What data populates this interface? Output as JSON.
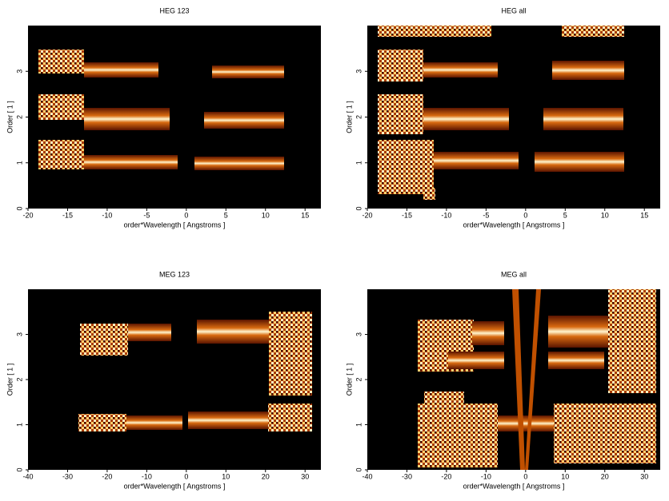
{
  "chart_data": [
    {
      "type": "heatmap",
      "title": "HEG 123",
      "xlabel": "order*Wavelength [ Angstroms ]",
      "ylabel": "Order [ 1 ]",
      "xlim": [
        -20,
        17
      ],
      "xticks": [
        -20,
        -15,
        -10,
        -5,
        0,
        5,
        10,
        15
      ],
      "ylim": [
        0,
        4
      ],
      "yticks": [
        0,
        1,
        2,
        3
      ]
    },
    {
      "type": "heatmap",
      "title": "HEG all",
      "xlabel": "order*Wavelength [ Angstroms ]",
      "ylabel": "Order [ 1 ]",
      "xlim": [
        -20,
        17
      ],
      "xticks": [
        -20,
        -15,
        -10,
        -5,
        0,
        5,
        10,
        15
      ],
      "ylim": [
        0,
        4
      ],
      "yticks": [
        0,
        1,
        2,
        3
      ]
    },
    {
      "type": "heatmap",
      "title": "MEG 123",
      "xlabel": "order*Wavelength [ Angstroms ]",
      "ylabel": "Order [ 1 ]",
      "xlim": [
        -40,
        34
      ],
      "xticks": [
        -40,
        -30,
        -20,
        -10,
        0,
        10,
        20,
        30
      ],
      "ylim": [
        0,
        4
      ],
      "yticks": [
        0,
        1,
        2,
        3
      ]
    },
    {
      "type": "heatmap",
      "title": "MEG all",
      "xlabel": "order*Wavelength [ Angstroms ]",
      "ylabel": "Order [ 1 ]",
      "xlim": [
        -40,
        34
      ],
      "xticks": [
        -40,
        -30,
        -20,
        -10,
        0,
        10,
        20,
        30
      ],
      "ylim": [
        0,
        4
      ],
      "yticks": [
        0,
        1,
        2,
        3
      ]
    }
  ]
}
